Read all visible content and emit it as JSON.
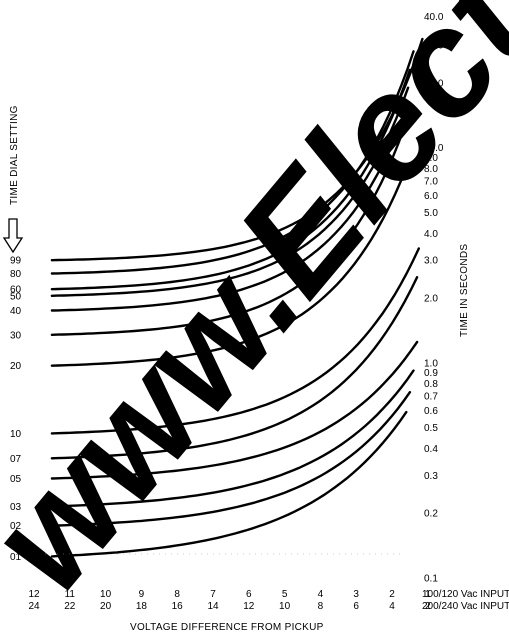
{
  "chart_data": {
    "type": "line",
    "title": "",
    "xlabel": "VOLTAGE DIFFERENCE FROM PICKUP",
    "ylabel": "TIME IN SECONDS",
    "y_scale": "log",
    "ylim": [
      0.1,
      40
    ],
    "x_axis_rows": [
      {
        "ticks": [
          "12",
          "11",
          "10",
          "9",
          "8",
          "7",
          "6",
          "5",
          "4",
          "3",
          "2",
          "1"
        ],
        "label": "100/120 Vac INPUT"
      },
      {
        "ticks": [
          "24",
          "22",
          "20",
          "18",
          "16",
          "14",
          "12",
          "10",
          "8",
          "6",
          "4",
          "2"
        ],
        "label": "200/240 Vac INPUT"
      }
    ],
    "y_ticks": [
      "40.0",
      "30.0",
      "20.0",
      "10.0",
      "9.0",
      "8.0",
      "7.0",
      "6.0",
      "5.0",
      "4.0",
      "3.0",
      "2.0",
      "1.0",
      "0.9",
      "0.8",
      "0.7",
      "0.6",
      "0.5",
      "0.4",
      "0.3",
      "0.2",
      "0.1"
    ],
    "y_tick_values": [
      40,
      30,
      20,
      10,
      9,
      8,
      7,
      6,
      5,
      4,
      3,
      2,
      1,
      0.9,
      0.8,
      0.7,
      0.6,
      0.5,
      0.4,
      0.3,
      0.2,
      0.1
    ],
    "dial_label": "TIME DIAL SETTING",
    "series": [
      {
        "name": "99",
        "start": 3.0,
        "end": 32.0,
        "end_x": 1.15,
        "k": 5.1
      },
      {
        "name": "80",
        "start": 2.6,
        "end": 28.0,
        "end_x": 1.4,
        "k": 4.9
      },
      {
        "name": "60",
        "start": 2.2,
        "end": 23.0,
        "end_x": 1.5,
        "k": 4.8
      },
      {
        "name": "50",
        "start": 2.05,
        "end": 19.0,
        "end_x": 1.55,
        "k": 4.8
      },
      {
        "name": "40",
        "start": 1.75,
        "end": 15.0,
        "end_x": 1.6,
        "k": 4.7
      },
      {
        "name": "30",
        "start": 1.35,
        "end": 12.5,
        "end_x": 1.65,
        "k": 4.7
      },
      {
        "name": "20",
        "start": 0.97,
        "end": 7.0,
        "end_x": 1.75,
        "k": 4.4
      },
      {
        "name": "10",
        "start": 0.47,
        "end": 3.4,
        "end_x": 1.25,
        "k": 4.3
      },
      {
        "name": "07",
        "start": 0.36,
        "end": 2.5,
        "end_x": 1.3,
        "k": 4.2
      },
      {
        "name": "05",
        "start": 0.29,
        "end": 1.25,
        "end_x": 1.3,
        "k": 3.9
      },
      {
        "name": "03",
        "start": 0.215,
        "end": 0.92,
        "end_x": 1.4,
        "k": 3.8
      },
      {
        "name": "02",
        "start": 0.175,
        "end": 0.73,
        "end_x": 1.5,
        "k": 3.8
      },
      {
        "name": "01",
        "start": 0.126,
        "end": 0.59,
        "end_x": 1.6,
        "k": 3.5
      }
    ]
  },
  "watermark": {
    "text": "www.Electric"
  }
}
